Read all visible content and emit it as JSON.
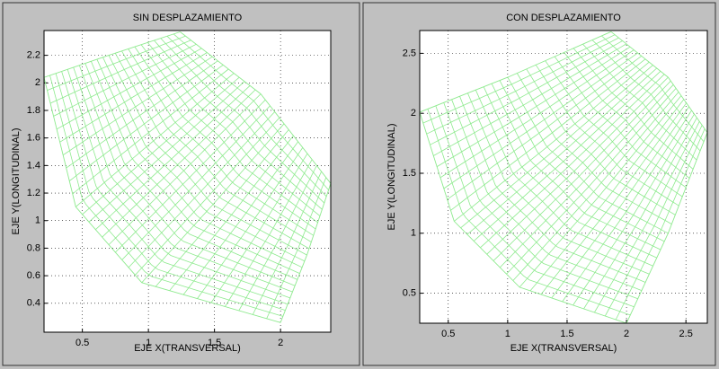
{
  "chart_data": [
    {
      "type": "mesh",
      "title": "SIN DESPLAZAMIENTO",
      "xlabel": "EJE X(TRANSVERSAL)",
      "ylabel": "EJE Y(LONGITUDINAL)",
      "xlim": [
        0.21,
        2.38
      ],
      "ylim": [
        0.19,
        2.38
      ],
      "xticks": [
        0.5,
        1,
        1.5,
        2
      ],
      "yticks": [
        0.4,
        0.6,
        0.8,
        1,
        1.2,
        1.4,
        1.6,
        1.8,
        2,
        2.2
      ],
      "grid": true,
      "color": "#8eea8e",
      "mesh_divisions": [
        22,
        30
      ],
      "boundary": {
        "top": {
          "x": [
            0.21,
            0.7,
            1.24
          ],
          "y": [
            2.04,
            2.2,
            2.37
          ]
        },
        "right": {
          "x": [
            1.24,
            1.85,
            2.38
          ],
          "y": [
            2.37,
            1.92,
            1.27
          ]
        },
        "bottom": {
          "x": [
            2.0,
            2.2,
            2.38
          ],
          "y": [
            0.26,
            0.75,
            1.27
          ]
        },
        "left": {
          "x": [
            0.21,
            0.45,
            0.95,
            2.0
          ],
          "y": [
            2.04,
            1.1,
            0.55,
            0.26
          ]
        }
      }
    },
    {
      "type": "mesh",
      "title": "CON DESPLAZAMIENTO",
      "xlabel": "EJE X(TRANSVERSAL)",
      "ylabel": "EJE Y(LONGITUDINAL)",
      "xlim": [
        0.26,
        2.68
      ],
      "ylim": [
        0.25,
        2.69
      ],
      "xticks": [
        0.5,
        1,
        1.5,
        2,
        2.5
      ],
      "yticks": [
        0.5,
        1,
        1.5,
        2,
        2.5
      ],
      "grid": true,
      "color": "#8eea8e",
      "mesh_divisions": [
        22,
        30
      ],
      "boundary": {
        "top": {
          "x": [
            0.26,
            1.0,
            1.87
          ],
          "y": [
            2.01,
            2.3,
            2.68
          ]
        },
        "right": {
          "x": [
            1.87,
            2.35,
            2.68
          ],
          "y": [
            2.68,
            2.3,
            1.84
          ]
        },
        "bottom": {
          "x": [
            2.0,
            2.35,
            2.68
          ],
          "y": [
            0.25,
            1.0,
            1.84
          ]
        },
        "left": {
          "x": [
            0.26,
            0.55,
            1.1,
            2.0
          ],
          "y": [
            2.01,
            1.1,
            0.55,
            0.25
          ]
        }
      }
    }
  ]
}
